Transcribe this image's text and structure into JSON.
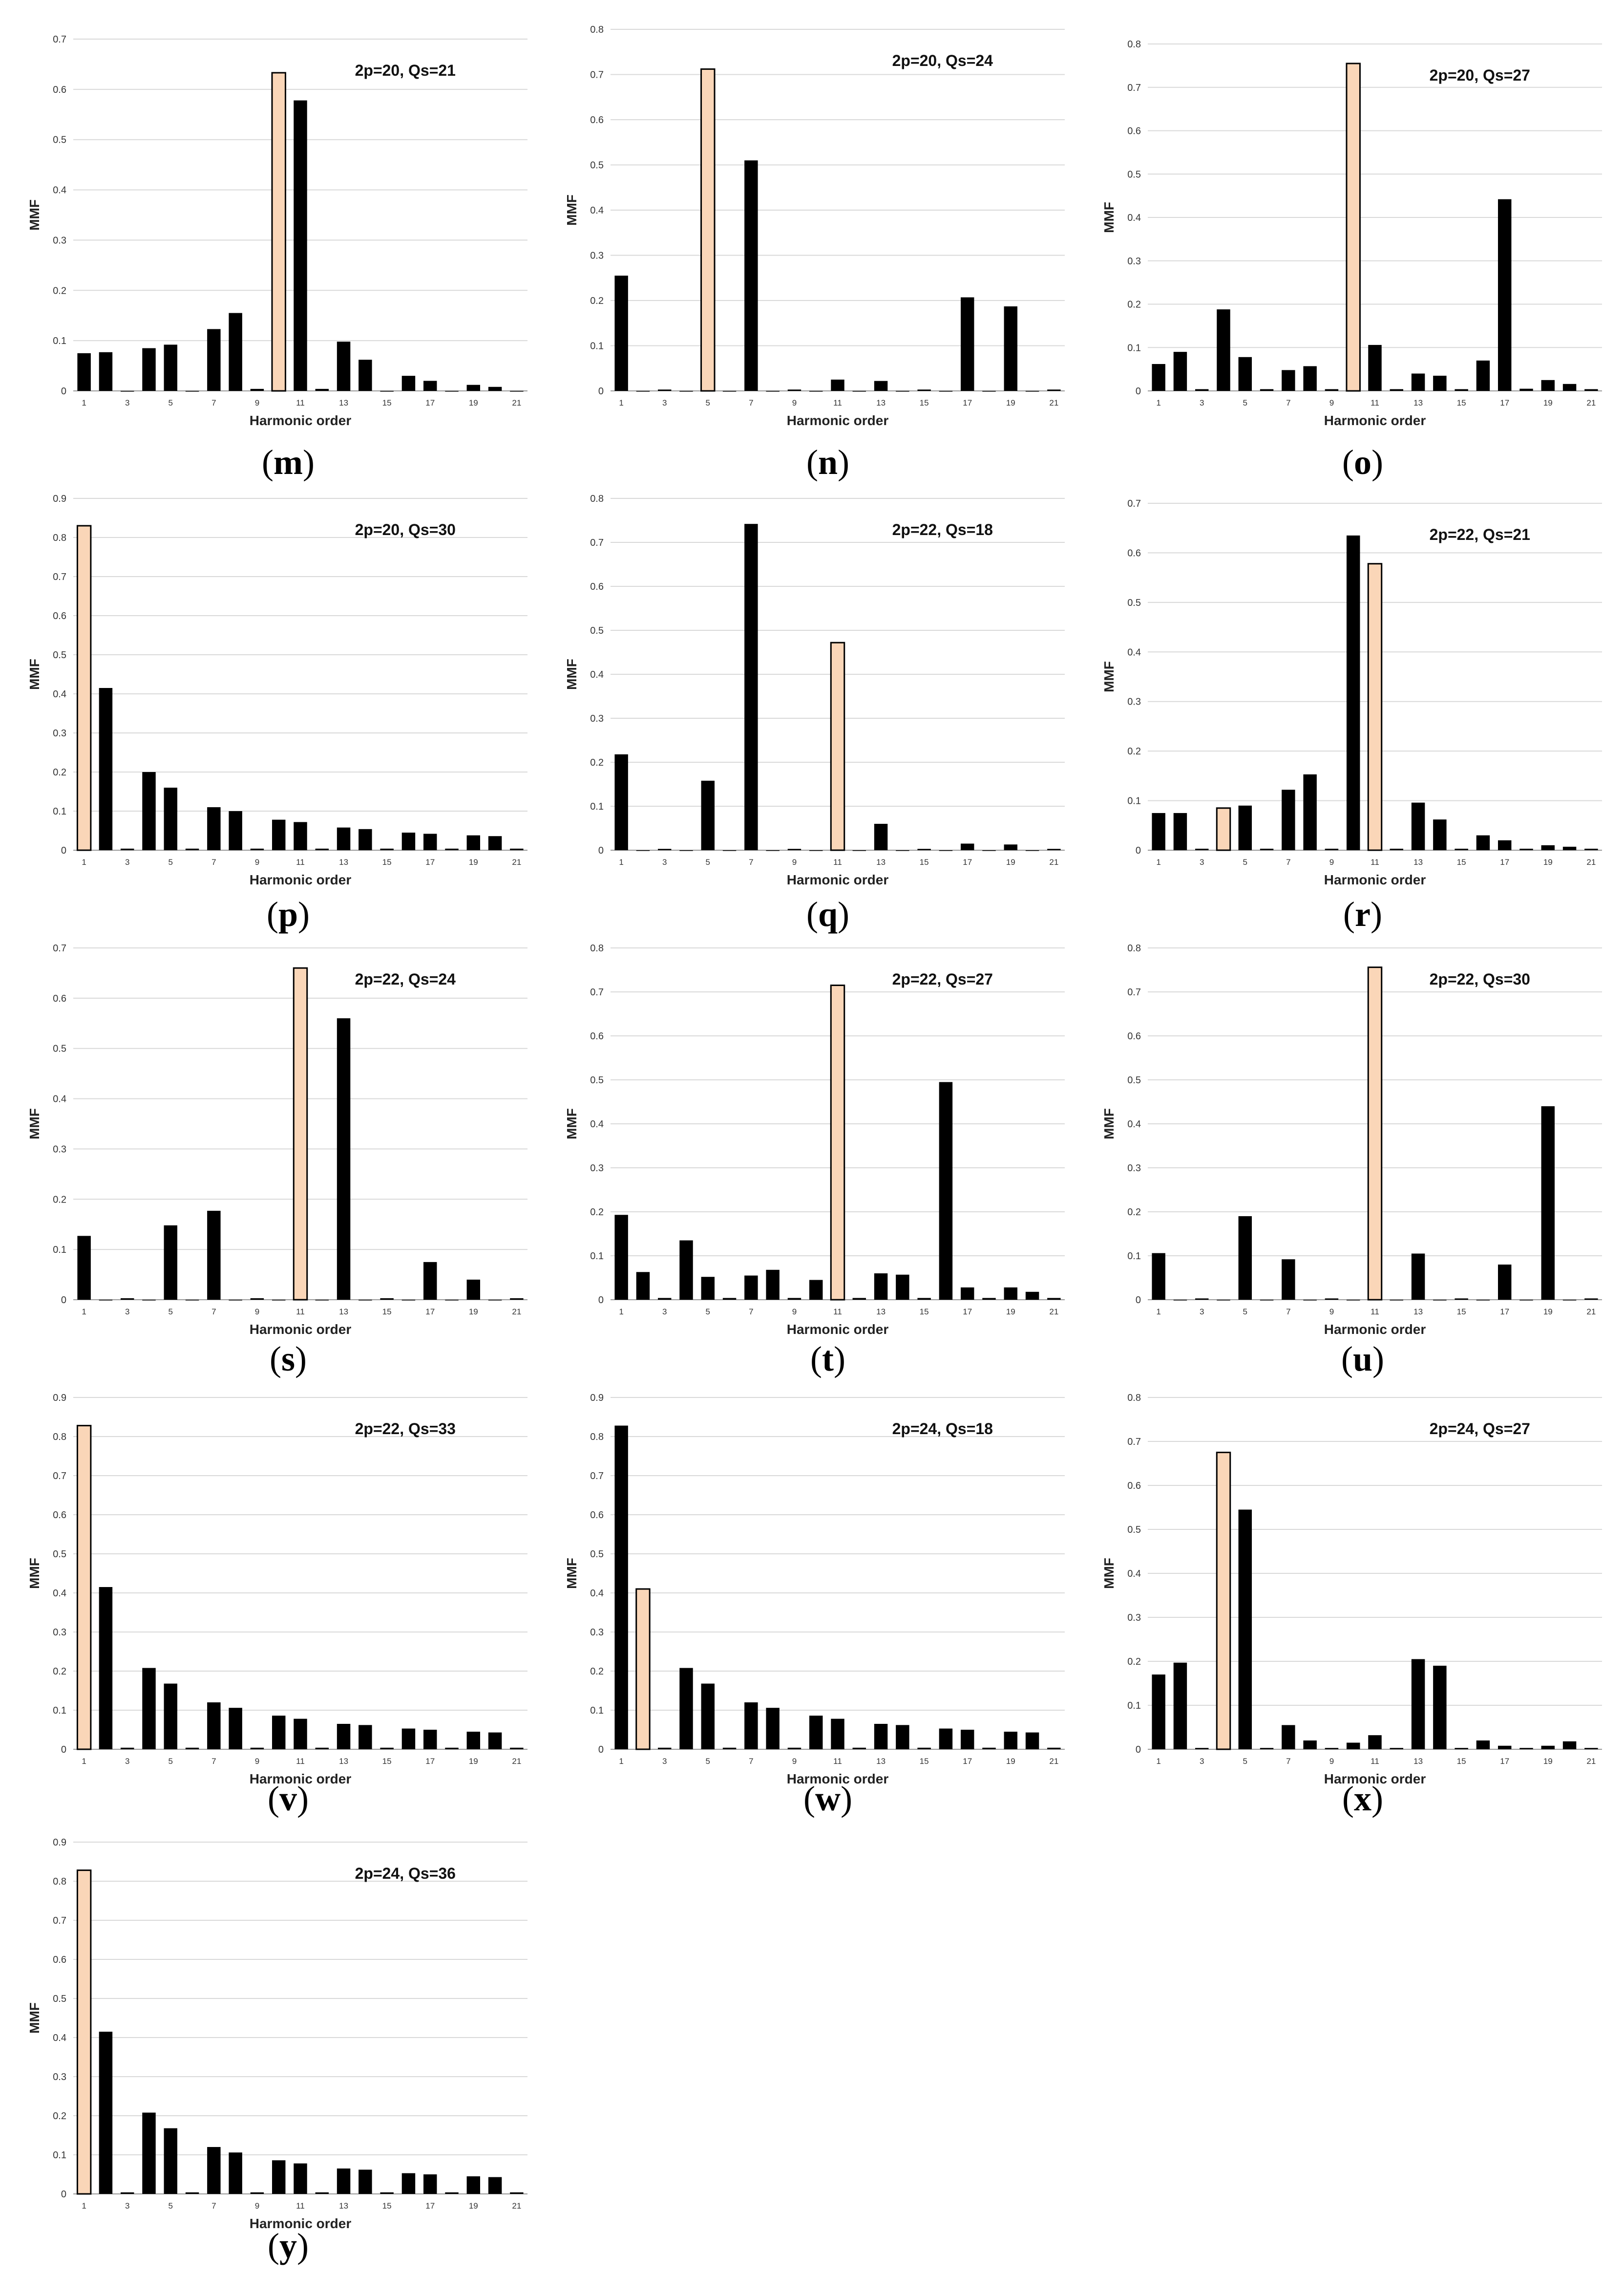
{
  "colors": {
    "bar": "#000000",
    "highlight_fill": "#FAD6B8",
    "highlight_stroke": "#000000",
    "grid": "#D9D9D9"
  },
  "chart_data": [
    {
      "id": "m",
      "type": "bar",
      "annotation": "2p=20, Qs=21",
      "xlabel": "Harmonic order",
      "ylabel": "MMF",
      "categories": [
        1,
        2,
        3,
        4,
        5,
        6,
        7,
        8,
        9,
        10,
        11,
        12,
        13,
        14,
        15,
        16,
        17,
        18,
        19,
        20,
        21
      ],
      "x_ticks": [
        "1",
        "3",
        "5",
        "7",
        "9",
        "11",
        "13",
        "15",
        "17",
        "19",
        "21"
      ],
      "ylim": [
        0,
        0.7
      ],
      "y_ticks": [
        "0",
        "0.1",
        "0.2",
        "0.3",
        "0.4",
        "0.5",
        "0.6",
        "0.7"
      ],
      "grid": true,
      "highlight": [
        10
      ],
      "values": [
        0.075,
        0.077,
        0,
        0.085,
        0.092,
        0,
        0.123,
        0.155,
        0.004,
        0.633,
        0.578,
        0.004,
        0.098,
        0.062,
        0,
        0.03,
        0.02,
        0,
        0.012,
        0.008,
        0
      ]
    },
    {
      "id": "n",
      "type": "bar",
      "annotation": "2p=20, Qs=24",
      "xlabel": "Harmonic order",
      "ylabel": "MMF",
      "categories": [
        1,
        2,
        3,
        4,
        5,
        6,
        7,
        8,
        9,
        10,
        11,
        12,
        13,
        14,
        15,
        16,
        17,
        18,
        19,
        20,
        21
      ],
      "x_ticks": [
        "1",
        "3",
        "5",
        "7",
        "9",
        "11",
        "13",
        "15",
        "17",
        "19",
        "21"
      ],
      "ylim": [
        0,
        0.8
      ],
      "y_ticks": [
        "0",
        "0.1",
        "0.2",
        "0.3",
        "0.4",
        "0.5",
        "0.6",
        "0.7",
        "0.8"
      ],
      "grid": true,
      "highlight": [
        5
      ],
      "values": [
        0.255,
        0,
        0.003,
        0,
        0.712,
        0,
        0.51,
        0,
        0.003,
        0,
        0.025,
        0,
        0.022,
        0,
        0.003,
        0,
        0.207,
        0,
        0.187,
        0,
        0.003
      ]
    },
    {
      "id": "o",
      "type": "bar",
      "annotation": "2p=20, Qs=27",
      "xlabel": "Harmonic order",
      "ylabel": "MMF",
      "categories": [
        1,
        2,
        3,
        4,
        5,
        6,
        7,
        8,
        9,
        10,
        11,
        12,
        13,
        14,
        15,
        16,
        17,
        18,
        19,
        20,
        21
      ],
      "x_ticks": [
        "1",
        "3",
        "5",
        "7",
        "9",
        "11",
        "13",
        "15",
        "17",
        "19",
        "21"
      ],
      "ylim": [
        0,
        0.8
      ],
      "y_ticks": [
        "0",
        "0.1",
        "0.2",
        "0.3",
        "0.4",
        "0.5",
        "0.6",
        "0.7",
        "0.8"
      ],
      "grid": true,
      "highlight": [
        10
      ],
      "values": [
        0.062,
        0.09,
        0.004,
        0.188,
        0.078,
        0.004,
        0.048,
        0.057,
        0.004,
        0.755,
        0.106,
        0.004,
        0.04,
        0.035,
        0.004,
        0.07,
        0.442,
        0.005,
        0.025,
        0.016,
        0.004
      ]
    },
    {
      "id": "p",
      "type": "bar",
      "annotation": "2p=20, Qs=30",
      "xlabel": "Harmonic order",
      "ylabel": "MMF",
      "categories": [
        1,
        2,
        3,
        4,
        5,
        6,
        7,
        8,
        9,
        10,
        11,
        12,
        13,
        14,
        15,
        16,
        17,
        18,
        19,
        20,
        21
      ],
      "x_ticks": [
        "1",
        "3",
        "5",
        "7",
        "9",
        "11",
        "13",
        "15",
        "17",
        "19",
        "21"
      ],
      "ylim": [
        0,
        0.9
      ],
      "y_ticks": [
        "0",
        "0.1",
        "0.2",
        "0.3",
        "0.4",
        "0.5",
        "0.6",
        "0.7",
        "0.8",
        "0.9"
      ],
      "grid": true,
      "highlight": [
        1
      ],
      "values": [
        0.83,
        0.415,
        0.004,
        0.2,
        0.16,
        0.004,
        0.11,
        0.1,
        0.004,
        0.078,
        0.072,
        0.004,
        0.058,
        0.054,
        0.004,
        0.045,
        0.042,
        0.004,
        0.038,
        0.036,
        0.004
      ]
    },
    {
      "id": "q",
      "type": "bar",
      "annotation": "2p=22, Qs=18",
      "xlabel": "Harmonic order",
      "ylabel": "MMF",
      "categories": [
        1,
        2,
        3,
        4,
        5,
        6,
        7,
        8,
        9,
        10,
        11,
        12,
        13,
        14,
        15,
        16,
        17,
        18,
        19,
        20,
        21
      ],
      "x_ticks": [
        "1",
        "3",
        "5",
        "7",
        "9",
        "11",
        "13",
        "15",
        "17",
        "19",
        "21"
      ],
      "ylim": [
        0,
        0.8
      ],
      "y_ticks": [
        "0",
        "0.1",
        "0.2",
        "0.3",
        "0.4",
        "0.5",
        "0.6",
        "0.7",
        "0.8"
      ],
      "grid": true,
      "highlight": [
        11
      ],
      "values": [
        0.218,
        0,
        0.003,
        0,
        0.158,
        0,
        0.742,
        0,
        0.003,
        0,
        0.472,
        0,
        0.06,
        0,
        0.003,
        0,
        0.015,
        0,
        0.013,
        0,
        0.003
      ]
    },
    {
      "id": "r",
      "type": "bar",
      "annotation": "2p=22, Qs=21",
      "xlabel": "Harmonic order",
      "ylabel": "MMF",
      "categories": [
        1,
        2,
        3,
        4,
        5,
        6,
        7,
        8,
        9,
        10,
        11,
        12,
        13,
        14,
        15,
        16,
        17,
        18,
        19,
        20,
        21
      ],
      "x_ticks": [
        "1",
        "3",
        "5",
        "7",
        "9",
        "11",
        "13",
        "15",
        "17",
        "19",
        "21"
      ],
      "ylim": [
        0,
        0.7
      ],
      "y_ticks": [
        "0",
        "0.1",
        "0.2",
        "0.3",
        "0.4",
        "0.5",
        "0.6",
        "0.7"
      ],
      "grid": true,
      "highlight": [
        4,
        11
      ],
      "values": [
        0.075,
        0.075,
        0.003,
        0.085,
        0.09,
        0.003,
        0.122,
        0.153,
        0.003,
        0.635,
        0.578,
        0.003,
        0.096,
        0.062,
        0.003,
        0.03,
        0.02,
        0.003,
        0.01,
        0.007,
        0.003
      ]
    },
    {
      "id": "s",
      "type": "bar",
      "annotation": "2p=22, Qs=24",
      "xlabel": "Harmonic order",
      "ylabel": "MMF",
      "categories": [
        1,
        2,
        3,
        4,
        5,
        6,
        7,
        8,
        9,
        10,
        11,
        12,
        13,
        14,
        15,
        16,
        17,
        18,
        19,
        20,
        21
      ],
      "x_ticks": [
        "1",
        "3",
        "5",
        "7",
        "9",
        "11",
        "13",
        "15",
        "17",
        "19",
        "21"
      ],
      "ylim": [
        0,
        0.7
      ],
      "y_ticks": [
        "0",
        "0.1",
        "0.2",
        "0.3",
        "0.4",
        "0.5",
        "0.6",
        "0.7"
      ],
      "grid": true,
      "highlight": [
        11
      ],
      "values": [
        0.127,
        0,
        0.003,
        0,
        0.148,
        0,
        0.177,
        0,
        0.003,
        0,
        0.66,
        0,
        0.56,
        0,
        0.003,
        0,
        0.075,
        0,
        0.04,
        0,
        0.003
      ]
    },
    {
      "id": "t",
      "type": "bar",
      "annotation": "2p=22, Qs=27",
      "xlabel": "Harmonic order",
      "ylabel": "MMF",
      "categories": [
        1,
        2,
        3,
        4,
        5,
        6,
        7,
        8,
        9,
        10,
        11,
        12,
        13,
        14,
        15,
        16,
        17,
        18,
        19,
        20,
        21
      ],
      "x_ticks": [
        "1",
        "3",
        "5",
        "7",
        "9",
        "11",
        "13",
        "15",
        "17",
        "19",
        "21"
      ],
      "ylim": [
        0,
        0.8
      ],
      "y_ticks": [
        "0",
        "0.1",
        "0.2",
        "0.3",
        "0.4",
        "0.5",
        "0.6",
        "0.7",
        "0.8"
      ],
      "grid": true,
      "highlight": [
        11
      ],
      "values": [
        0.193,
        0.063,
        0.004,
        0.135,
        0.052,
        0.004,
        0.055,
        0.068,
        0.004,
        0.045,
        0.715,
        0.004,
        0.06,
        0.057,
        0.004,
        0.495,
        0.028,
        0.004,
        0.028,
        0.018,
        0.004
      ]
    },
    {
      "id": "u",
      "type": "bar",
      "annotation": "2p=22, Qs=30",
      "xlabel": "Harmonic order",
      "ylabel": "MMF",
      "categories": [
        1,
        2,
        3,
        4,
        5,
        6,
        7,
        8,
        9,
        10,
        11,
        12,
        13,
        14,
        15,
        16,
        17,
        18,
        19,
        20,
        21
      ],
      "x_ticks": [
        "1",
        "3",
        "5",
        "7",
        "9",
        "11",
        "13",
        "15",
        "17",
        "19",
        "21"
      ],
      "ylim": [
        0,
        0.8
      ],
      "y_ticks": [
        "0",
        "0.1",
        "0.2",
        "0.3",
        "0.4",
        "0.5",
        "0.6",
        "0.7",
        "0.8"
      ],
      "grid": true,
      "highlight": [
        11
      ],
      "values": [
        0.106,
        0,
        0.003,
        0,
        0.19,
        0,
        0.092,
        0,
        0.003,
        0,
        0.756,
        0,
        0.105,
        0,
        0.003,
        0,
        0.08,
        0,
        0.44,
        0,
        0.003
      ]
    },
    {
      "id": "v",
      "type": "bar",
      "annotation": "2p=22, Qs=33",
      "xlabel": "Harmonic order",
      "ylabel": "MMF",
      "categories": [
        1,
        2,
        3,
        4,
        5,
        6,
        7,
        8,
        9,
        10,
        11,
        12,
        13,
        14,
        15,
        16,
        17,
        18,
        19,
        20,
        21
      ],
      "x_ticks": [
        "1",
        "3",
        "5",
        "7",
        "9",
        "11",
        "13",
        "15",
        "17",
        "19",
        "21"
      ],
      "ylim": [
        0,
        0.9
      ],
      "y_ticks": [
        "0",
        "0.1",
        "0.2",
        "0.3",
        "0.4",
        "0.5",
        "0.6",
        "0.7",
        "0.8",
        "0.9"
      ],
      "grid": true,
      "highlight": [
        1
      ],
      "values": [
        0.828,
        0.415,
        0.004,
        0.208,
        0.168,
        0.004,
        0.12,
        0.106,
        0.004,
        0.086,
        0.078,
        0.004,
        0.065,
        0.062,
        0.004,
        0.053,
        0.05,
        0.004,
        0.045,
        0.043,
        0.004
      ]
    },
    {
      "id": "w",
      "type": "bar",
      "annotation": "2p=24, Qs=18",
      "xlabel": "Harmonic order",
      "ylabel": "MMF",
      "categories": [
        1,
        2,
        3,
        4,
        5,
        6,
        7,
        8,
        9,
        10,
        11,
        12,
        13,
        14,
        15,
        16,
        17,
        18,
        19,
        20,
        21
      ],
      "x_ticks": [
        "1",
        "3",
        "5",
        "7",
        "9",
        "11",
        "13",
        "15",
        "17",
        "19",
        "21"
      ],
      "ylim": [
        0,
        0.9
      ],
      "y_ticks": [
        "0",
        "0.1",
        "0.2",
        "0.3",
        "0.4",
        "0.5",
        "0.6",
        "0.7",
        "0.8",
        "0.9"
      ],
      "grid": true,
      "highlight": [
        2
      ],
      "values": [
        0.828,
        0.41,
        0.004,
        0.208,
        0.168,
        0.004,
        0.12,
        0.106,
        0.004,
        0.086,
        0.078,
        0.004,
        0.065,
        0.062,
        0.004,
        0.053,
        0.05,
        0.004,
        0.045,
        0.043,
        0.004
      ]
    },
    {
      "id": "x",
      "type": "bar",
      "annotation": "2p=24, Qs=27",
      "xlabel": "Harmonic order",
      "ylabel": "MMF",
      "categories": [
        1,
        2,
        3,
        4,
        5,
        6,
        7,
        8,
        9,
        10,
        11,
        12,
        13,
        14,
        15,
        16,
        17,
        18,
        19,
        20,
        21
      ],
      "x_ticks": [
        "1",
        "3",
        "5",
        "7",
        "9",
        "11",
        "13",
        "15",
        "17",
        "19",
        "21"
      ],
      "ylim": [
        0,
        0.8
      ],
      "y_ticks": [
        "0",
        "0.1",
        "0.2",
        "0.3",
        "0.4",
        "0.5",
        "0.6",
        "0.7",
        "0.8"
      ],
      "grid": true,
      "highlight": [
        4
      ],
      "values": [
        0.17,
        0.197,
        0.003,
        0.675,
        0.545,
        0.003,
        0.055,
        0.02,
        0.003,
        0.015,
        0.032,
        0.003,
        0.205,
        0.19,
        0.003,
        0.02,
        0.008,
        0.003,
        0.008,
        0.018,
        0.003
      ]
    },
    {
      "id": "y",
      "type": "bar",
      "annotation": "2p=24, Qs=36",
      "xlabel": "Harmonic order",
      "ylabel": "MMF",
      "categories": [
        1,
        2,
        3,
        4,
        5,
        6,
        7,
        8,
        9,
        10,
        11,
        12,
        13,
        14,
        15,
        16,
        17,
        18,
        19,
        20,
        21
      ],
      "x_ticks": [
        "1",
        "3",
        "5",
        "7",
        "9",
        "11",
        "13",
        "15",
        "17",
        "19",
        "21"
      ],
      "ylim": [
        0,
        0.9
      ],
      "y_ticks": [
        "0",
        "0.1",
        "0.2",
        "0.3",
        "0.4",
        "0.5",
        "0.6",
        "0.7",
        "0.8",
        "0.9"
      ],
      "grid": true,
      "highlight": [
        1
      ],
      "values": [
        0.828,
        0.415,
        0.004,
        0.208,
        0.168,
        0.004,
        0.12,
        0.106,
        0.004,
        0.086,
        0.078,
        0.004,
        0.065,
        0.062,
        0.004,
        0.053,
        0.05,
        0.004,
        0.045,
        0.043,
        0.004
      ]
    }
  ],
  "captions": [
    "m",
    "n",
    "o",
    "p",
    "q",
    "r",
    "s",
    "t",
    "u",
    "v",
    "w",
    "x",
    "y"
  ]
}
